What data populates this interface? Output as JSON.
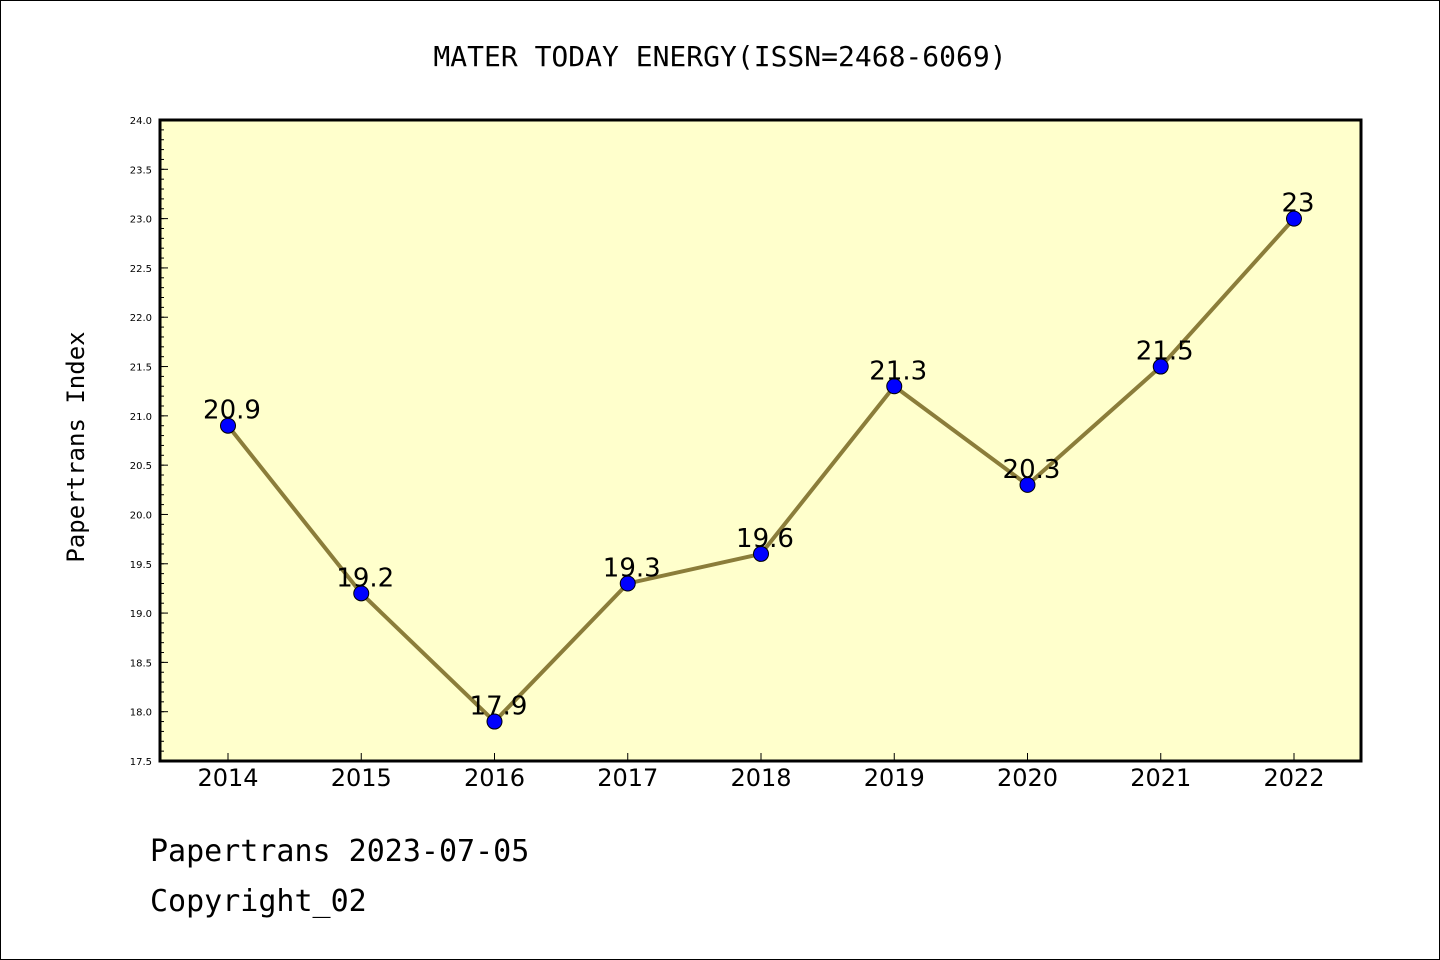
{
  "chart_data": {
    "type": "line",
    "title": "MATER TODAY ENERGY(ISSN=2468-6069)",
    "xlabel": "",
    "ylabel": "Papertrans Index",
    "categories": [
      "2014",
      "2015",
      "2016",
      "2017",
      "2018",
      "2019",
      "2020",
      "2021",
      "2022"
    ],
    "series": [
      {
        "values": [
          20.9,
          19.2,
          17.9,
          19.3,
          19.6,
          21.3,
          20.3,
          21.5,
          23.0
        ]
      }
    ],
    "data_labels": [
      "20.9",
      "19.2",
      "17.9",
      "19.3",
      "19.6",
      "21.3",
      "20.3",
      "21.5",
      "23"
    ],
    "ylim": [
      17.5,
      24.0
    ],
    "yticks": [
      "17.5",
      "18.0",
      "18.5",
      "19.0",
      "19.5",
      "20.0",
      "20.5",
      "21.0",
      "21.5",
      "22.0",
      "22.5",
      "23.0",
      "23.5",
      "24.0"
    ],
    "grid": false,
    "legend": "none",
    "colors": {
      "plot_background": "#ffffcc",
      "line": "#8b7d3a",
      "marker": "#0000ff"
    }
  },
  "footer": {
    "date_line": "Papertrans 2023-07-05",
    "copyright": "Copyright_02"
  }
}
